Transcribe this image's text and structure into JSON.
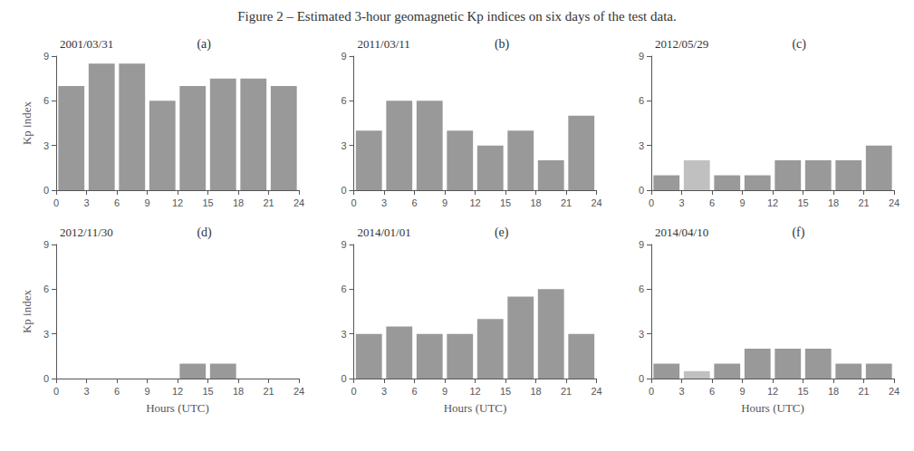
{
  "title": "Figure 2 – Estimated 3-hour geomagnetic Kp indices on six days of the test data.",
  "chart_data": [
    {
      "type": "bar",
      "annotations": [
        "2001/03/31",
        "(a)"
      ],
      "x": [
        1.5,
        4.5,
        7.5,
        10.5,
        13.5,
        16.5,
        19.5,
        22.5
      ],
      "values": [
        7,
        8.5,
        8.5,
        6,
        7,
        7.5,
        7.5,
        7
      ],
      "colors": [
        "#999999",
        "#999999",
        "#999999",
        "#999999",
        "#999999",
        "#999999",
        "#999999",
        "#999999"
      ],
      "xlim": [
        0,
        24
      ],
      "xticks": [
        0,
        3,
        6,
        9,
        12,
        15,
        18,
        21,
        24
      ],
      "ylim": [
        0,
        9
      ],
      "yticks": [
        0,
        3,
        6,
        9
      ],
      "ylabel": "Kp index",
      "grid": false
    },
    {
      "type": "bar",
      "annotations": [
        "2011/03/11",
        "(b)"
      ],
      "x": [
        1.5,
        4.5,
        7.5,
        10.5,
        13.5,
        16.5,
        19.5,
        22.5
      ],
      "values": [
        4,
        6,
        6,
        4,
        3,
        4,
        2,
        5
      ],
      "colors": [
        "#999999",
        "#999999",
        "#999999",
        "#999999",
        "#999999",
        "#999999",
        "#999999",
        "#999999"
      ],
      "xlim": [
        0,
        24
      ],
      "xticks": [
        0,
        3,
        6,
        9,
        12,
        15,
        18,
        21,
        24
      ],
      "ylim": [
        0,
        9
      ],
      "yticks": [
        0,
        3,
        6,
        9
      ],
      "grid": false
    },
    {
      "type": "bar",
      "annotations": [
        "2012/05/29",
        "(c)"
      ],
      "x": [
        1.5,
        4.5,
        7.5,
        10.5,
        13.5,
        16.5,
        19.5,
        22.5
      ],
      "values": [
        1,
        2,
        1,
        1,
        2,
        2,
        2,
        3
      ],
      "colors": [
        "#999999",
        "#c0c0c0",
        "#999999",
        "#999999",
        "#999999",
        "#999999",
        "#999999",
        "#999999"
      ],
      "xlim": [
        0,
        24
      ],
      "xticks": [
        0,
        3,
        6,
        9,
        12,
        15,
        18,
        21,
        24
      ],
      "ylim": [
        0,
        9
      ],
      "yticks": [
        0,
        3,
        6,
        9
      ],
      "grid": false
    },
    {
      "type": "bar",
      "annotations": [
        "2012/11/30",
        "(d)"
      ],
      "x": [
        1.5,
        4.5,
        7.5,
        10.5,
        13.5,
        16.5,
        19.5,
        22.5
      ],
      "values": [
        0,
        0,
        0,
        0,
        1,
        1,
        0,
        0
      ],
      "colors": [
        "#999999",
        "#999999",
        "#999999",
        "#999999",
        "#999999",
        "#999999",
        "#999999",
        "#999999"
      ],
      "xlim": [
        0,
        24
      ],
      "xticks": [
        0,
        3,
        6,
        9,
        12,
        15,
        18,
        21,
        24
      ],
      "ylim": [
        0,
        9
      ],
      "yticks": [
        0,
        3,
        6,
        9
      ],
      "xlabel": "Hours (UTC)",
      "ylabel": "Kp index",
      "grid": false
    },
    {
      "type": "bar",
      "annotations": [
        "2014/01/01",
        "(e)"
      ],
      "x": [
        1.5,
        4.5,
        7.5,
        10.5,
        13.5,
        16.5,
        19.5,
        22.5
      ],
      "values": [
        3,
        3.5,
        3,
        3,
        4,
        5.5,
        6,
        3
      ],
      "colors": [
        "#999999",
        "#999999",
        "#999999",
        "#999999",
        "#999999",
        "#999999",
        "#999999",
        "#999999"
      ],
      "xlim": [
        0,
        24
      ],
      "xticks": [
        0,
        3,
        6,
        9,
        12,
        15,
        18,
        21,
        24
      ],
      "ylim": [
        0,
        9
      ],
      "yticks": [
        0,
        3,
        6,
        9
      ],
      "xlabel": "Hours (UTC)",
      "grid": false
    },
    {
      "type": "bar",
      "annotations": [
        "2014/04/10",
        "(f)"
      ],
      "x": [
        1.5,
        4.5,
        7.5,
        10.5,
        13.5,
        16.5,
        19.5,
        22.5
      ],
      "values": [
        1,
        0.5,
        1,
        2,
        2,
        2,
        1,
        1
      ],
      "colors": [
        "#999999",
        "#c0c0c0",
        "#999999",
        "#999999",
        "#999999",
        "#999999",
        "#999999",
        "#999999"
      ],
      "xlim": [
        0,
        24
      ],
      "xticks": [
        0,
        3,
        6,
        9,
        12,
        15,
        18,
        21,
        24
      ],
      "ylim": [
        0,
        9
      ],
      "yticks": [
        0,
        3,
        6,
        9
      ],
      "xlabel": "Hours (UTC)",
      "grid": false
    }
  ]
}
